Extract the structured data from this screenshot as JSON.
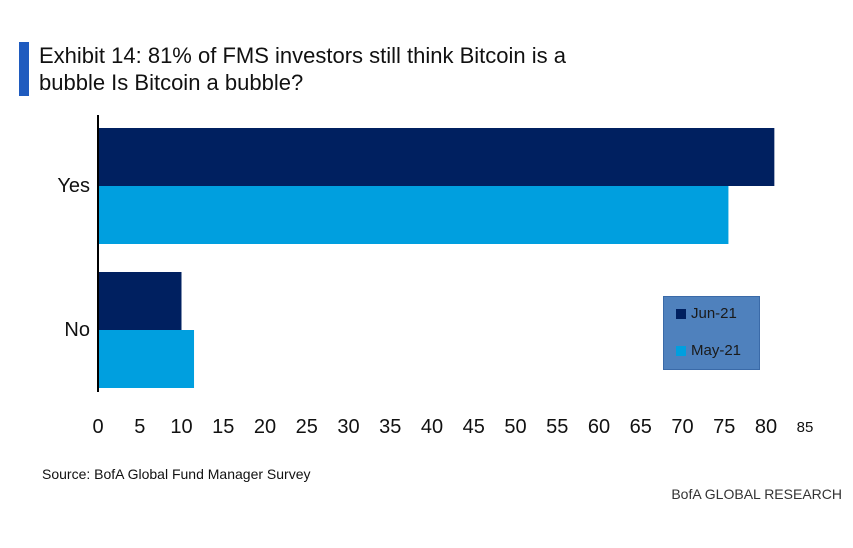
{
  "title": "Exhibit 14: 81% of FMS investors still think Bitcoin is a bubble Is Bitcoin a bubble?",
  "source": "Source: BofA Global Fund Manager Survey",
  "brand": "BofA GLOBAL RESEARCH",
  "colors": {
    "accent": "#1f5bbf",
    "jun21": "#002060",
    "may21": "#009fdf",
    "legend_bg": "#4f81bd"
  },
  "chart_data": {
    "type": "bar",
    "orientation": "horizontal",
    "title": "Exhibit 14: 81% of FMS investors still think Bitcoin is a bubble Is Bitcoin a bubble?",
    "categories": [
      "Yes",
      "No"
    ],
    "series": [
      {
        "name": "Jun-21",
        "values": [
          81,
          10
        ]
      },
      {
        "name": "May-21",
        "values": [
          75.5,
          11.5
        ]
      }
    ],
    "xlim": [
      0,
      85
    ],
    "xticks": [
      "0",
      "5",
      "10",
      "15",
      "20",
      "25",
      "30",
      "35",
      "40",
      "45",
      "50",
      "55",
      "60",
      "65",
      "70",
      "75",
      "80",
      "85"
    ],
    "xlabel": "",
    "ylabel": "",
    "legend_position": "bottom-right",
    "grid": false
  }
}
